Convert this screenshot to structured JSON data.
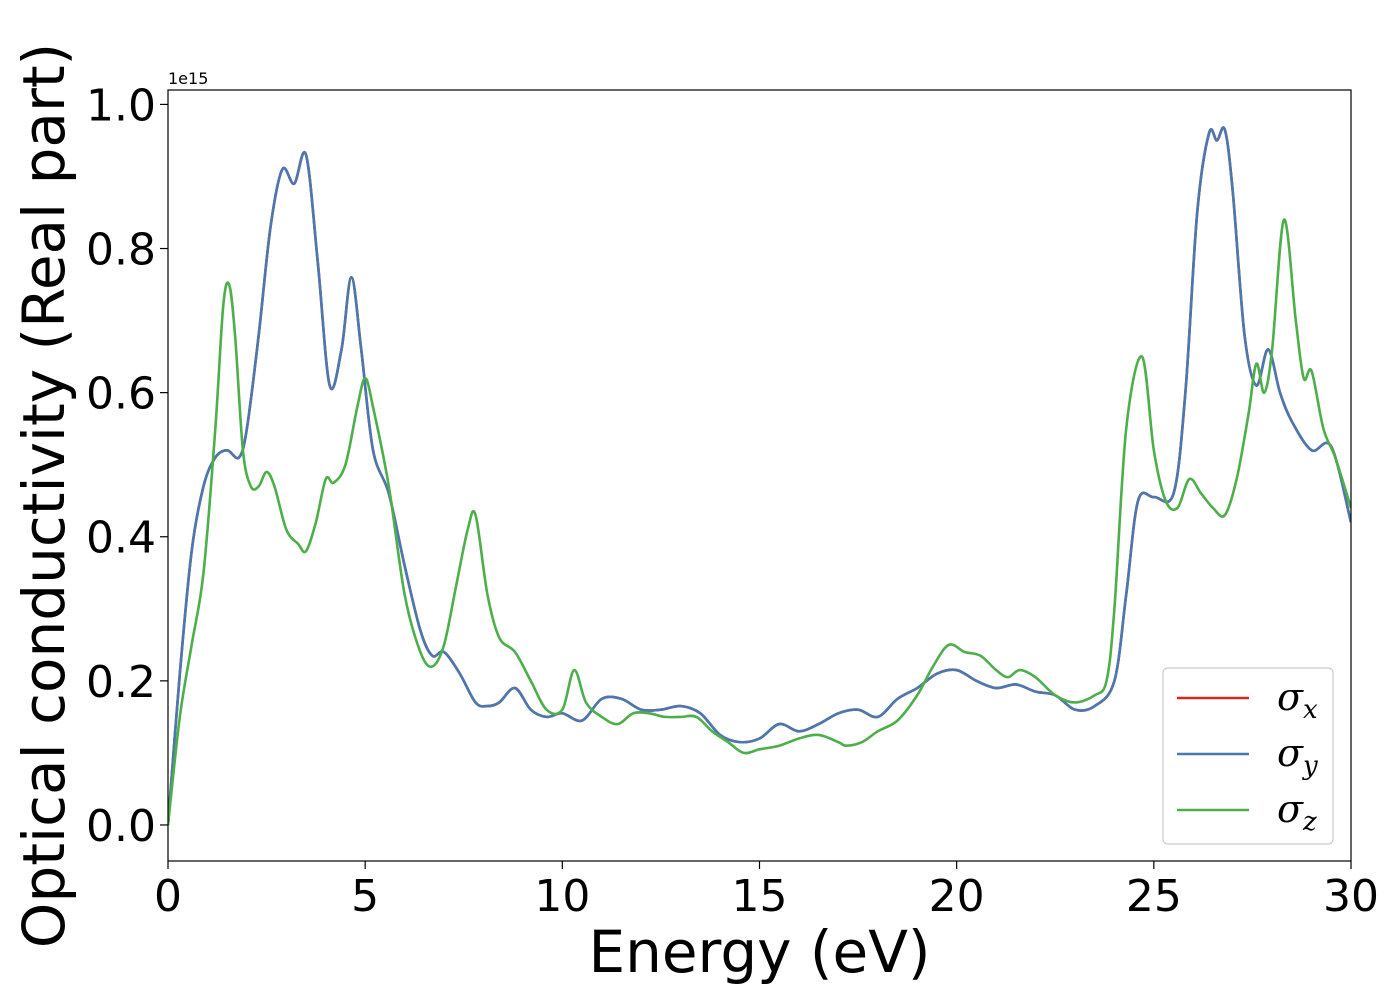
{
  "chart_data": {
    "type": "line",
    "xlabel": "Energy (eV)",
    "ylabel": "Optical conductivity (Real part)",
    "y_offset_label": "1e15",
    "xlim": [
      0,
      30
    ],
    "ylim": [
      -0.05,
      1.02
    ],
    "x_ticks": [
      0,
      5,
      10,
      15,
      20,
      25,
      30
    ],
    "x_tick_labels": [
      "0",
      "5",
      "10",
      "15",
      "20",
      "25",
      "30"
    ],
    "y_ticks": [
      0.0,
      0.2,
      0.4,
      0.6,
      0.8,
      1.0
    ],
    "y_tick_labels": [
      "0.0",
      "0.2",
      "0.4",
      "0.6",
      "0.8",
      "1.0"
    ],
    "grid": false,
    "legend_position": "bottom-right",
    "colors": {
      "sigma_x": "#d62728",
      "sigma_y": "#4a78b0",
      "sigma_z": "#4caf4a"
    },
    "series": [
      {
        "name": "σ",
        "subscript": "x",
        "color": "#d62728",
        "x": [
          0,
          0.3,
          0.6,
          0.9,
          1.2,
          1.5,
          1.8,
          2.0,
          2.3,
          2.6,
          2.9,
          3.2,
          3.5,
          3.8,
          4.1,
          4.4,
          4.65,
          4.9,
          5.2,
          5.6,
          6.0,
          6.4,
          6.7,
          7.0,
          7.4,
          7.8,
          8.1,
          8.4,
          8.8,
          9.2,
          9.6,
          10.0,
          10.5,
          11.0,
          11.5,
          12.0,
          12.5,
          13.0,
          13.5,
          14.0,
          14.5,
          15.0,
          15.5,
          16.0,
          16.5,
          17.0,
          17.5,
          18.0,
          18.5,
          19.0,
          19.5,
          20.0,
          20.5,
          21.0,
          21.5,
          22.0,
          22.5,
          23.0,
          23.5,
          24.0,
          24.3,
          24.6,
          25.0,
          25.5,
          25.8,
          26.1,
          26.4,
          26.6,
          26.8,
          27.0,
          27.3,
          27.6,
          27.9,
          28.2,
          28.5,
          29.0,
          29.5,
          30.0
        ],
        "values": [
          0.0,
          0.21,
          0.38,
          0.47,
          0.51,
          0.52,
          0.51,
          0.55,
          0.68,
          0.83,
          0.91,
          0.89,
          0.93,
          0.78,
          0.61,
          0.66,
          0.76,
          0.66,
          0.52,
          0.46,
          0.36,
          0.27,
          0.235,
          0.24,
          0.21,
          0.17,
          0.165,
          0.17,
          0.19,
          0.16,
          0.15,
          0.155,
          0.145,
          0.175,
          0.175,
          0.16,
          0.16,
          0.165,
          0.155,
          0.125,
          0.115,
          0.12,
          0.14,
          0.13,
          0.14,
          0.155,
          0.16,
          0.15,
          0.175,
          0.19,
          0.21,
          0.215,
          0.2,
          0.19,
          0.195,
          0.185,
          0.18,
          0.16,
          0.165,
          0.2,
          0.32,
          0.45,
          0.455,
          0.46,
          0.6,
          0.85,
          0.96,
          0.95,
          0.965,
          0.88,
          0.68,
          0.61,
          0.66,
          0.6,
          0.56,
          0.52,
          0.525,
          0.42
        ]
      },
      {
        "name": "σ",
        "subscript": "y",
        "color": "#4a78b0",
        "x": [
          0,
          0.3,
          0.6,
          0.9,
          1.2,
          1.5,
          1.8,
          2.0,
          2.3,
          2.6,
          2.9,
          3.2,
          3.5,
          3.8,
          4.1,
          4.4,
          4.65,
          4.9,
          5.2,
          5.6,
          6.0,
          6.4,
          6.7,
          7.0,
          7.4,
          7.8,
          8.1,
          8.4,
          8.8,
          9.2,
          9.6,
          10.0,
          10.5,
          11.0,
          11.5,
          12.0,
          12.5,
          13.0,
          13.5,
          14.0,
          14.5,
          15.0,
          15.5,
          16.0,
          16.5,
          17.0,
          17.5,
          18.0,
          18.5,
          19.0,
          19.5,
          20.0,
          20.5,
          21.0,
          21.5,
          22.0,
          22.5,
          23.0,
          23.5,
          24.0,
          24.3,
          24.6,
          25.0,
          25.5,
          25.8,
          26.1,
          26.4,
          26.6,
          26.8,
          27.0,
          27.3,
          27.6,
          27.9,
          28.2,
          28.5,
          29.0,
          29.5,
          30.0
        ],
        "values": [
          0.0,
          0.21,
          0.38,
          0.47,
          0.51,
          0.52,
          0.51,
          0.55,
          0.68,
          0.83,
          0.91,
          0.89,
          0.93,
          0.78,
          0.61,
          0.66,
          0.76,
          0.66,
          0.52,
          0.46,
          0.36,
          0.27,
          0.235,
          0.24,
          0.21,
          0.17,
          0.165,
          0.17,
          0.19,
          0.16,
          0.15,
          0.155,
          0.145,
          0.175,
          0.175,
          0.16,
          0.16,
          0.165,
          0.155,
          0.125,
          0.115,
          0.12,
          0.14,
          0.13,
          0.14,
          0.155,
          0.16,
          0.15,
          0.175,
          0.19,
          0.21,
          0.215,
          0.2,
          0.19,
          0.195,
          0.185,
          0.18,
          0.16,
          0.165,
          0.2,
          0.32,
          0.45,
          0.455,
          0.46,
          0.6,
          0.85,
          0.96,
          0.95,
          0.965,
          0.88,
          0.68,
          0.61,
          0.66,
          0.6,
          0.56,
          0.52,
          0.525,
          0.42
        ]
      },
      {
        "name": "σ",
        "subscript": "z",
        "color": "#4caf4a",
        "x": [
          0,
          0.3,
          0.6,
          0.9,
          1.2,
          1.4,
          1.55,
          1.7,
          1.9,
          2.1,
          2.3,
          2.5,
          2.7,
          3.0,
          3.3,
          3.5,
          3.75,
          4.0,
          4.2,
          4.5,
          4.8,
          5.0,
          5.2,
          5.6,
          6.0,
          6.4,
          6.7,
          7.0,
          7.3,
          7.6,
          7.8,
          8.1,
          8.4,
          8.8,
          9.2,
          9.6,
          10.0,
          10.3,
          10.6,
          11.0,
          11.4,
          11.8,
          12.2,
          12.6,
          13.0,
          13.4,
          13.8,
          14.2,
          14.6,
          15.0,
          15.5,
          16.0,
          16.5,
          17.0,
          17.2,
          17.6,
          18.0,
          18.5,
          19.0,
          19.4,
          19.8,
          20.2,
          20.6,
          21.0,
          21.3,
          21.6,
          22.0,
          22.5,
          23.0,
          23.5,
          23.8,
          24.0,
          24.3,
          24.7,
          25.0,
          25.3,
          25.6,
          25.9,
          26.2,
          26.5,
          26.8,
          27.1,
          27.4,
          27.6,
          27.8,
          28.0,
          28.3,
          28.6,
          28.8,
          29.0,
          29.3,
          29.6,
          30.0
        ],
        "values": [
          0.0,
          0.15,
          0.25,
          0.35,
          0.55,
          0.72,
          0.75,
          0.68,
          0.52,
          0.47,
          0.47,
          0.49,
          0.47,
          0.41,
          0.39,
          0.38,
          0.42,
          0.48,
          0.475,
          0.5,
          0.58,
          0.62,
          0.58,
          0.47,
          0.32,
          0.24,
          0.22,
          0.25,
          0.33,
          0.41,
          0.43,
          0.32,
          0.26,
          0.24,
          0.2,
          0.16,
          0.16,
          0.215,
          0.17,
          0.15,
          0.14,
          0.155,
          0.155,
          0.15,
          0.15,
          0.15,
          0.13,
          0.115,
          0.1,
          0.105,
          0.11,
          0.12,
          0.125,
          0.115,
          0.11,
          0.115,
          0.13,
          0.145,
          0.18,
          0.22,
          0.25,
          0.24,
          0.235,
          0.215,
          0.205,
          0.215,
          0.205,
          0.18,
          0.17,
          0.18,
          0.2,
          0.3,
          0.55,
          0.65,
          0.52,
          0.45,
          0.44,
          0.48,
          0.46,
          0.44,
          0.43,
          0.48,
          0.57,
          0.64,
          0.6,
          0.66,
          0.84,
          0.7,
          0.62,
          0.63,
          0.55,
          0.51,
          0.44
        ]
      }
    ]
  }
}
